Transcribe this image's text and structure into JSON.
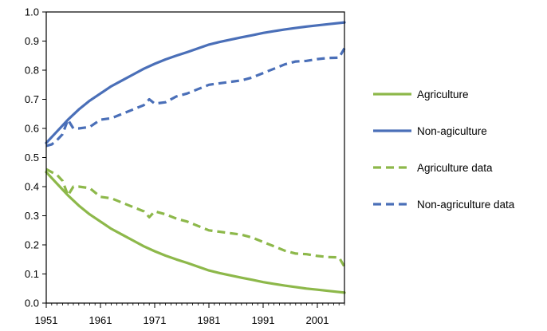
{
  "chart_data": {
    "type": "line",
    "title": "",
    "xlabel": "",
    "ylabel": "",
    "xlim": [
      1951,
      2006
    ],
    "ylim": [
      0,
      1
    ],
    "x_ticks": [
      1951,
      1961,
      1971,
      1981,
      1991,
      2001
    ],
    "y_ticks": [
      "0.0",
      "0.1",
      "0.2",
      "0.3",
      "0.4",
      "0.5",
      "0.6",
      "0.7",
      "0.8",
      "0.9",
      "1.0"
    ],
    "grid": false,
    "legend_position": "right",
    "series": [
      {
        "name": "Agriculture",
        "color": "#8db84a",
        "style": "solid",
        "x": [
          1951,
          1953,
          1955,
          1957,
          1959,
          1961,
          1963,
          1965,
          1967,
          1969,
          1971,
          1973,
          1975,
          1977,
          1979,
          1981,
          1983,
          1985,
          1987,
          1989,
          1991,
          1993,
          1995,
          1997,
          1999,
          2001,
          2003,
          2006
        ],
        "values": [
          0.45,
          0.41,
          0.37,
          0.335,
          0.305,
          0.28,
          0.255,
          0.235,
          0.215,
          0.195,
          0.178,
          0.163,
          0.15,
          0.138,
          0.125,
          0.112,
          0.103,
          0.095,
          0.087,
          0.08,
          0.072,
          0.066,
          0.06,
          0.055,
          0.05,
          0.046,
          0.042,
          0.036
        ]
      },
      {
        "name": "Non-agiculture",
        "color": "#4a6fb8",
        "style": "solid",
        "x": [
          1951,
          1953,
          1955,
          1957,
          1959,
          1961,
          1963,
          1965,
          1967,
          1969,
          1971,
          1973,
          1975,
          1977,
          1979,
          1981,
          1983,
          1985,
          1987,
          1989,
          1991,
          1993,
          1995,
          1997,
          1999,
          2001,
          2003,
          2006
        ],
        "values": [
          0.55,
          0.59,
          0.63,
          0.665,
          0.695,
          0.72,
          0.745,
          0.765,
          0.785,
          0.805,
          0.822,
          0.837,
          0.85,
          0.862,
          0.875,
          0.888,
          0.897,
          0.905,
          0.913,
          0.92,
          0.928,
          0.934,
          0.94,
          0.945,
          0.95,
          0.954,
          0.958,
          0.964
        ]
      },
      {
        "name": "Agriculture data",
        "color": "#8db84a",
        "style": "dashed",
        "x": [
          1951,
          1952,
          1953,
          1954,
          1955,
          1956,
          1957,
          1959,
          1961,
          1963,
          1965,
          1967,
          1969,
          1970,
          1971,
          1973,
          1975,
          1977,
          1979,
          1981,
          1983,
          1985,
          1987,
          1989,
          1991,
          1993,
          1995,
          1997,
          1999,
          2001,
          2003,
          2005,
          2006
        ],
        "values": [
          0.46,
          0.45,
          0.44,
          0.42,
          0.37,
          0.4,
          0.4,
          0.395,
          0.365,
          0.36,
          0.345,
          0.33,
          0.315,
          0.295,
          0.315,
          0.305,
          0.29,
          0.28,
          0.265,
          0.25,
          0.245,
          0.24,
          0.235,
          0.225,
          0.21,
          0.195,
          0.18,
          0.17,
          0.168,
          0.162,
          0.158,
          0.157,
          0.125
        ]
      },
      {
        "name": "Non-agriculture data",
        "color": "#4a6fb8",
        "style": "dashed",
        "x": [
          1951,
          1952,
          1953,
          1954,
          1955,
          1956,
          1957,
          1959,
          1961,
          1963,
          1965,
          1967,
          1969,
          1970,
          1971,
          1973,
          1975,
          1977,
          1979,
          1981,
          1983,
          1985,
          1987,
          1989,
          1991,
          1993,
          1995,
          1997,
          1999,
          2001,
          2003,
          2005,
          2006
        ],
        "values": [
          0.54,
          0.545,
          0.56,
          0.58,
          0.63,
          0.6,
          0.6,
          0.605,
          0.63,
          0.635,
          0.65,
          0.665,
          0.68,
          0.7,
          0.685,
          0.69,
          0.71,
          0.72,
          0.735,
          0.75,
          0.755,
          0.76,
          0.765,
          0.775,
          0.79,
          0.805,
          0.82,
          0.83,
          0.832,
          0.838,
          0.842,
          0.843,
          0.875
        ]
      }
    ]
  }
}
